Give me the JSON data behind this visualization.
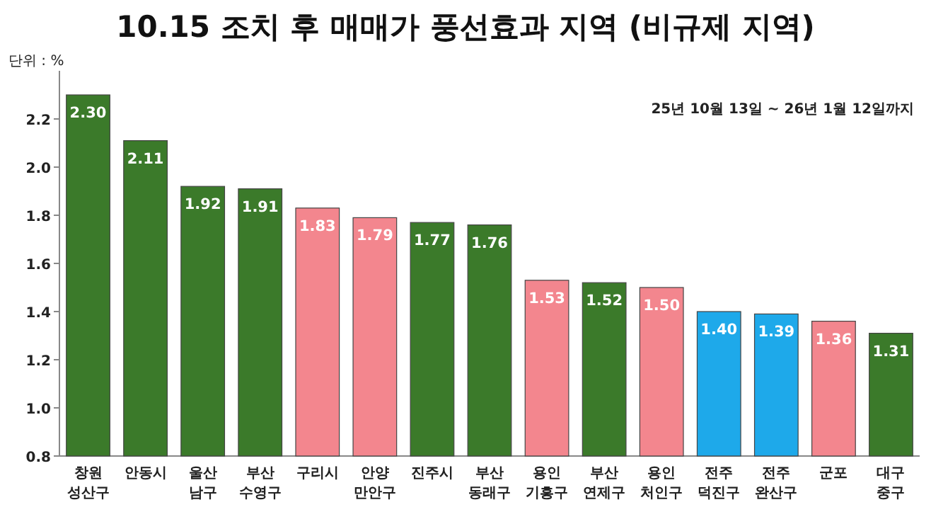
{
  "chart_data": {
    "type": "bar",
    "title": "10.15 조치 후 매매가 풍선효과 지역 (비규제 지역)",
    "ylabel": "단위 : %",
    "annotations": [
      "25년 10월 13일 ~ 26년 1월 12일까지"
    ],
    "categories": [
      "창원 성산구",
      "안동시",
      "울산 남구",
      "부산 수영구",
      "구리시",
      "안양 만안구",
      "진주시",
      "부산 동래구",
      "용인 기흥구",
      "부산 연제구",
      "용인 처인구",
      "전주 덕진구",
      "전주 완산구",
      "군포",
      "대구 중구"
    ],
    "values": [
      2.3,
      2.11,
      1.92,
      1.91,
      1.83,
      1.79,
      1.77,
      1.76,
      1.53,
      1.52,
      1.5,
      1.4,
      1.39,
      1.36,
      1.31
    ],
    "colors": [
      "#3b7a2a",
      "#3b7a2a",
      "#3b7a2a",
      "#3b7a2a",
      "#f3868e",
      "#f3868e",
      "#3b7a2a",
      "#3b7a2a",
      "#f3868e",
      "#3b7a2a",
      "#f3868e",
      "#1ea9ea",
      "#1ea9ea",
      "#f3868e",
      "#3b7a2a"
    ],
    "value_labels": [
      "2.30",
      "2.11",
      "1.92",
      "1.91",
      "1.83",
      "1.79",
      "1.77",
      "1.76",
      "1.53",
      "1.52",
      "1.50",
      "1.40",
      "1.39",
      "1.36",
      "1.31"
    ],
    "ylim": [
      0.8,
      2.4
    ],
    "yticks": [
      0.8,
      {
        "value": 1.0,
        "label": "1.0"
      },
      1.2,
      1.4,
      1.6,
      1.8,
      {
        "value": 2.0,
        "label": "2.0"
      },
      2.2
    ]
  }
}
